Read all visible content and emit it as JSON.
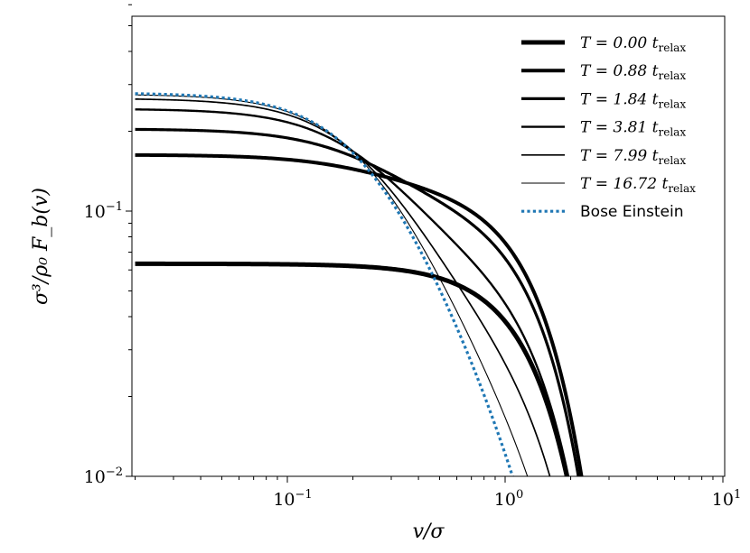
{
  "chart_data": {
    "type": "line",
    "xscale": "log",
    "yscale": "log",
    "xlim": [
      0.02,
      10
    ],
    "ylim": [
      0.01,
      0.6
    ],
    "xlabel": "v/σ",
    "ylabel": "σ³/ρ₀ F_b(v)",
    "x_ticks": [
      {
        "base": "10",
        "exp": "−1",
        "value": 0.1
      },
      {
        "base": "10",
        "exp": "0",
        "value": 1
      },
      {
        "base": "10",
        "exp": "1",
        "value": 10
      }
    ],
    "y_ticks": [
      {
        "base": "10",
        "exp": "−2",
        "value": 0.01
      },
      {
        "base": "10",
        "exp": "−1",
        "value": 0.1
      }
    ],
    "grid": false,
    "legend_position": "top-right",
    "series": [
      {
        "name": "T = 0.00 t_relax",
        "label_main": "T = 0.00",
        "label_t": "t",
        "label_sub": "relax",
        "style": "solid",
        "color": "#000000",
        "curve": "gauss",
        "A": 0.0633
      },
      {
        "name": "T = 0.88 t_relax",
        "label_main": "T = 0.88",
        "label_t": "t",
        "label_sub": "relax",
        "style": "solid",
        "color": "#000000",
        "curve": "mix",
        "A": 0.163,
        "w": 0.25
      },
      {
        "name": "T = 1.84 t_relax",
        "label_main": "T = 1.84",
        "label_t": "t",
        "label_sub": "relax",
        "style": "solid",
        "color": "#000000",
        "curve": "mix",
        "A": 0.204,
        "w": 0.5
      },
      {
        "name": "T = 3.81 t_relax",
        "label_main": "T = 3.81",
        "label_t": "t",
        "label_sub": "relax",
        "style": "solid",
        "color": "#000000",
        "curve": "mix",
        "A": 0.243,
        "w": 0.75
      },
      {
        "name": "T = 7.99 t_relax",
        "label_main": "T = 7.99",
        "label_t": "t",
        "label_sub": "relax",
        "style": "solid",
        "color": "#000000",
        "curve": "mix",
        "A": 0.266,
        "w": 0.9
      },
      {
        "name": "T = 16.72 t_relax",
        "label_main": "T = 16.72",
        "label_t": "t",
        "label_sub": "relax",
        "style": "solid",
        "color": "#000000",
        "curve": "mix",
        "A": 0.276,
        "w": 0.97
      },
      {
        "name": "Bose Einstein",
        "label_main": "Bose Einstein",
        "style": "dotted",
        "color": "#1f77b4",
        "curve": "be",
        "A": 0.279
      }
    ]
  }
}
